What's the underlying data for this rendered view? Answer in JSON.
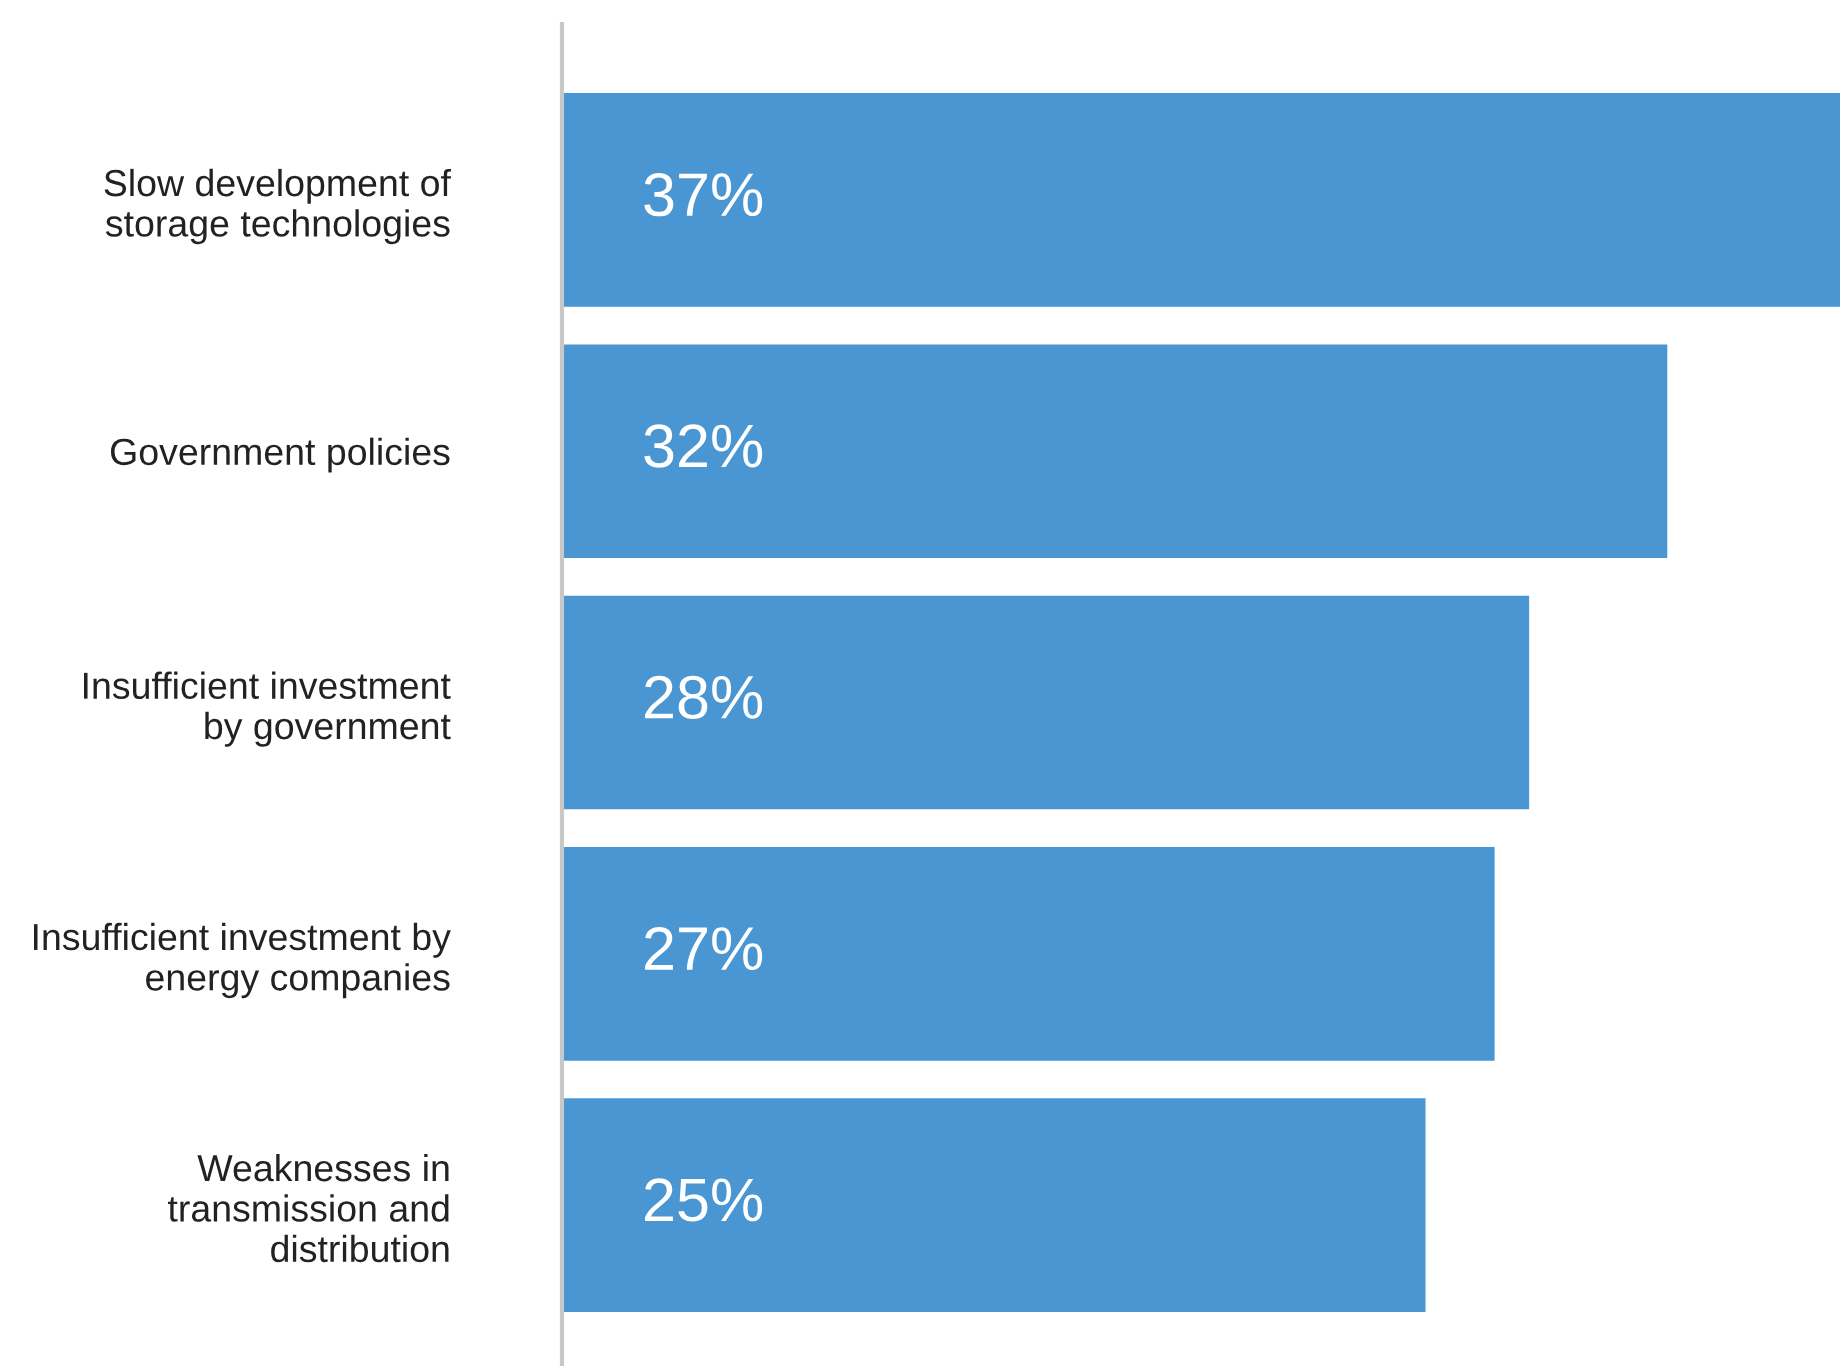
{
  "chart_data": {
    "type": "bar",
    "orientation": "horizontal",
    "categories": [
      "Slow development of\nstorage technologies",
      "Government policies",
      "Insufficient investment\nby government",
      "Insufficient investment by\nenergy companies",
      "Weaknesses in\ntransmission and\ndistribution"
    ],
    "values": [
      37,
      32,
      28,
      27,
      25
    ],
    "value_labels": [
      "37%",
      "32%",
      "28%",
      "27%",
      "25%"
    ],
    "color": "#4a96d2",
    "xlim": [
      0,
      37
    ],
    "tick_labels": "y",
    "grid": false,
    "legend": false
  }
}
